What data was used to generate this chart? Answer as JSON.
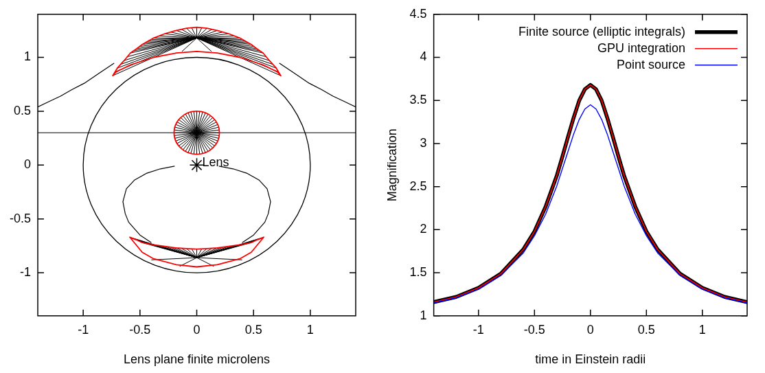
{
  "chart_data": [
    {
      "type": "line",
      "xlabel": "Lens plane finite microlens",
      "xlim": [
        -1.4,
        1.4
      ],
      "ylim": [
        -1.4,
        1.4
      ],
      "xticks": [
        -1,
        -0.5,
        0,
        0.5,
        1
      ],
      "yticks": [
        -1,
        -0.5,
        0,
        0.5,
        1
      ],
      "grid": false,
      "legend": false,
      "annotations": [
        {
          "text": "Lens",
          "x": 0,
          "y": 0
        }
      ],
      "series": [
        {
          "color": "#000000",
          "x": [
            -1.4,
            1.4
          ],
          "values": [
            0.3,
            0.3
          ]
        },
        {
          "color": "#000000",
          "x": [
            -1.4,
            -1.3,
            -1.2,
            -1.1,
            -0.99,
            -0.85,
            -0.73,
            0,
            0.73,
            0.85,
            0.99,
            1.1,
            1.2,
            1.3,
            1.4
          ],
          "values": [
            0.54,
            0.59,
            0.64,
            0.7,
            0.76,
            0.86,
            0.945,
            null,
            0.945,
            0.86,
            0.76,
            0.7,
            0.64,
            0.59,
            0.54
          ]
        }
      ]
    },
    {
      "type": "line",
      "xlabel": "time in Einstein radii",
      "ylabel": "Magnification",
      "xlim": [
        -1.4,
        1.4
      ],
      "ylim": [
        1,
        4.5
      ],
      "xticks": [
        -1,
        -0.5,
        0,
        0.5,
        1
      ],
      "yticks": [
        1,
        1.5,
        2,
        2.5,
        3,
        3.5,
        4,
        4.5
      ],
      "grid": false,
      "legend": "top right",
      "x": [
        -1.4,
        -1.2,
        -1,
        -0.8,
        -0.6,
        -0.5,
        -0.4,
        -0.3,
        -0.25,
        -0.2,
        -0.15,
        -0.1,
        -0.05,
        0,
        0.05,
        0.1,
        0.15,
        0.2,
        0.25,
        0.3,
        0.4,
        0.5,
        0.6,
        0.8,
        1,
        1.2,
        1.4
      ],
      "series": [
        {
          "name": "Finite source (elliptic integrals)",
          "color": "#000000",
          "values": [
            1.16,
            1.22,
            1.325,
            1.49,
            1.77,
            1.98,
            2.27,
            2.63,
            2.85,
            3.08,
            3.3,
            3.5,
            3.63,
            3.68,
            3.63,
            3.5,
            3.3,
            3.08,
            2.85,
            2.63,
            2.27,
            1.98,
            1.77,
            1.49,
            1.325,
            1.22,
            1.16
          ]
        },
        {
          "name": "GPU integration",
          "color": "#ff0000",
          "values": [
            1.16,
            1.22,
            1.325,
            1.49,
            1.77,
            1.98,
            2.27,
            2.63,
            2.85,
            3.08,
            3.3,
            3.5,
            3.63,
            3.68,
            3.63,
            3.5,
            3.3,
            3.08,
            2.85,
            2.63,
            2.27,
            1.98,
            1.77,
            1.49,
            1.325,
            1.22,
            1.16
          ]
        },
        {
          "name": "Point source",
          "color": "#0000ff",
          "values": [
            1.15,
            1.21,
            1.31,
            1.47,
            1.73,
            1.93,
            2.18,
            2.51,
            2.71,
            2.91,
            3.11,
            3.28,
            3.4,
            3.45,
            3.4,
            3.28,
            3.11,
            2.91,
            2.71,
            2.51,
            2.18,
            1.93,
            1.73,
            1.47,
            1.31,
            1.21,
            1.15
          ]
        }
      ]
    }
  ]
}
